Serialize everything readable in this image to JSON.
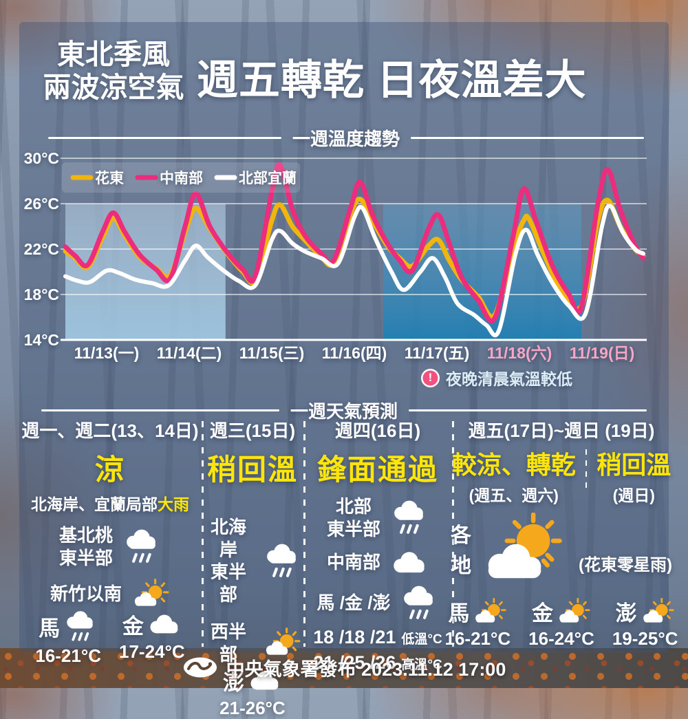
{
  "header": {
    "tagline_line1": "東北季風",
    "tagline_line2": "兩波涼空氣",
    "title": "週五轉乾 日夜溫差大"
  },
  "chart_section": {
    "heading": "一週溫度趨勢",
    "note_icon": "exclamation",
    "note": "夜晚清晨氣溫較低"
  },
  "chart_data": {
    "type": "line",
    "title": "一週溫度趨勢",
    "ylabel": "°C",
    "ylim": [
      14,
      30
    ],
    "yticks": [
      30,
      26,
      22,
      18,
      14
    ],
    "ytick_labels": [
      "30°C",
      "26°C",
      "22°C",
      "18°C",
      "14°C"
    ],
    "grid": true,
    "legend_position": "top-left",
    "x_days": [
      {
        "label": "11/13(一)",
        "weekend": false
      },
      {
        "label": "11/14(二)",
        "weekend": false
      },
      {
        "label": "11/15(三)",
        "weekend": false
      },
      {
        "label": "11/16(四)",
        "weekend": false
      },
      {
        "label": "11/17(五)",
        "weekend": false
      },
      {
        "label": "11/18(六)",
        "weekend": true
      },
      {
        "label": "11/19(日)",
        "weekend": true
      }
    ],
    "weekend_label_color": "#f7a6c6",
    "shaded_regions": [
      {
        "id": "cool-air-wave-1",
        "from_day": 0,
        "to_day": 1.94,
        "top_temp": 26,
        "tone": "light"
      },
      {
        "id": "cool-air-wave-2",
        "from_day": 3.85,
        "to_day": 6.25,
        "top_temp": 26,
        "tone": "dark"
      }
    ],
    "series": [
      {
        "id": "hualien-taitung",
        "name": "花東",
        "color": "#f2b50c",
        "width": 7,
        "points": [
          [
            0,
            21.8
          ],
          [
            0.12,
            21.2
          ],
          [
            0.27,
            20.4
          ],
          [
            0.45,
            23.0
          ],
          [
            0.58,
            24.7
          ],
          [
            0.72,
            23.2
          ],
          [
            0.9,
            21.3
          ],
          [
            1.1,
            20.3
          ],
          [
            1.27,
            19.7
          ],
          [
            1.45,
            23.5
          ],
          [
            1.58,
            25.6
          ],
          [
            1.75,
            23.8
          ],
          [
            1.95,
            21.7
          ],
          [
            2.15,
            20.0
          ],
          [
            2.3,
            19.3
          ],
          [
            2.5,
            24.5
          ],
          [
            2.6,
            25.9
          ],
          [
            2.75,
            24.0
          ],
          [
            2.9,
            22.8
          ],
          [
            3.1,
            21.3
          ],
          [
            3.25,
            20.8
          ],
          [
            3.45,
            25.0
          ],
          [
            3.57,
            26.4
          ],
          [
            3.72,
            24.5
          ],
          [
            3.9,
            22.3
          ],
          [
            4.05,
            21.2
          ],
          [
            4.2,
            20.5
          ],
          [
            4.4,
            22.3
          ],
          [
            4.52,
            22.8
          ],
          [
            4.65,
            21.0
          ],
          [
            4.8,
            19.3
          ],
          [
            5.0,
            17.8
          ],
          [
            5.2,
            16.2
          ],
          [
            5.42,
            22.0
          ],
          [
            5.55,
            24.5
          ],
          [
            5.62,
            24.6
          ],
          [
            5.8,
            21.5
          ],
          [
            6.0,
            18.5
          ],
          [
            6.25,
            17.0
          ],
          [
            6.45,
            24.5
          ],
          [
            6.57,
            26.3
          ],
          [
            6.72,
            24.0
          ],
          [
            6.9,
            22.0
          ],
          [
            7.0,
            21.4
          ]
        ]
      },
      {
        "id": "central-southern",
        "name": "中南部",
        "color": "#ec2c7c",
        "width": 7,
        "points": [
          [
            0,
            22.2
          ],
          [
            0.12,
            21.4
          ],
          [
            0.27,
            20.6
          ],
          [
            0.45,
            23.5
          ],
          [
            0.58,
            25.2
          ],
          [
            0.72,
            23.5
          ],
          [
            0.9,
            21.5
          ],
          [
            1.1,
            20.2
          ],
          [
            1.27,
            19.4
          ],
          [
            1.45,
            24.0
          ],
          [
            1.58,
            26.9
          ],
          [
            1.75,
            24.0
          ],
          [
            1.95,
            21.8
          ],
          [
            2.15,
            20.2
          ],
          [
            2.3,
            19.6
          ],
          [
            2.5,
            27.0
          ],
          [
            2.6,
            29.4
          ],
          [
            2.75,
            25.5
          ],
          [
            2.9,
            23.2
          ],
          [
            3.1,
            21.6
          ],
          [
            3.25,
            21.0
          ],
          [
            3.45,
            25.5
          ],
          [
            3.57,
            27.9
          ],
          [
            3.72,
            25.0
          ],
          [
            3.9,
            22.5
          ],
          [
            4.05,
            21.0
          ],
          [
            4.2,
            20.1
          ],
          [
            4.4,
            23.8
          ],
          [
            4.52,
            25.0
          ],
          [
            4.65,
            22.5
          ],
          [
            4.8,
            19.5
          ],
          [
            5.0,
            17.5
          ],
          [
            5.2,
            15.9
          ],
          [
            5.42,
            23.0
          ],
          [
            5.55,
            27.3
          ],
          [
            5.7,
            24.5
          ],
          [
            5.9,
            20.5
          ],
          [
            6.1,
            18.0
          ],
          [
            6.25,
            16.9
          ],
          [
            6.45,
            26.0
          ],
          [
            6.57,
            29.0
          ],
          [
            6.72,
            25.5
          ],
          [
            6.9,
            22.3
          ],
          [
            7.0,
            21.2
          ]
        ]
      },
      {
        "id": "northern-yilan",
        "name": "北部宜蘭",
        "color": "#ffffff",
        "width": 6,
        "points": [
          [
            0,
            19.6
          ],
          [
            0.15,
            19.2
          ],
          [
            0.3,
            19.1
          ],
          [
            0.5,
            20.1
          ],
          [
            0.65,
            19.9
          ],
          [
            0.85,
            19.3
          ],
          [
            1.05,
            19.0
          ],
          [
            1.25,
            18.8
          ],
          [
            1.45,
            21.0
          ],
          [
            1.58,
            22.3
          ],
          [
            1.72,
            21.3
          ],
          [
            1.9,
            20.2
          ],
          [
            2.1,
            19.2
          ],
          [
            2.3,
            18.8
          ],
          [
            2.5,
            22.8
          ],
          [
            2.6,
            23.6
          ],
          [
            2.75,
            22.5
          ],
          [
            2.9,
            21.8
          ],
          [
            3.1,
            21.2
          ],
          [
            3.3,
            20.7
          ],
          [
            3.5,
            24.8
          ],
          [
            3.6,
            25.6
          ],
          [
            3.75,
            23.0
          ],
          [
            3.95,
            20.0
          ],
          [
            4.1,
            18.4
          ],
          [
            4.3,
            20.0
          ],
          [
            4.45,
            21.2
          ],
          [
            4.6,
            19.5
          ],
          [
            4.75,
            17.2
          ],
          [
            4.95,
            16.2
          ],
          [
            5.1,
            15.3
          ],
          [
            5.25,
            14.8
          ],
          [
            5.45,
            21.5
          ],
          [
            5.58,
            23.7
          ],
          [
            5.72,
            21.5
          ],
          [
            5.9,
            19.0
          ],
          [
            6.1,
            17.0
          ],
          [
            6.3,
            16.3
          ],
          [
            6.5,
            24.0
          ],
          [
            6.6,
            25.8
          ],
          [
            6.75,
            23.5
          ],
          [
            6.9,
            22.0
          ],
          [
            7.0,
            21.6
          ]
        ]
      }
    ],
    "legend": [
      {
        "id": "hualien-taitung",
        "label": "花東",
        "color": "#f2b50c"
      },
      {
        "id": "central-southern",
        "label": "中南部",
        "color": "#ec2c7c"
      },
      {
        "id": "northern-yilan",
        "label": "北部宜蘭",
        "color": "#ffffff"
      }
    ]
  },
  "forecast": {
    "heading": "一週天氣預測",
    "columns": [
      {
        "header": "週一、週二(13、14日)",
        "condition": "涼",
        "subtitle_white": "北海岸、宜蘭局部",
        "subtitle_yellow": "大雨",
        "rows": [
          {
            "label": "基北桃\n東半部",
            "icon": "rain"
          },
          {
            "label": "新竹以南",
            "icon": "partly-sunny"
          }
        ],
        "islands": [
          {
            "name": "馬",
            "icon": "rain",
            "temp": "16-21°C"
          },
          {
            "name": "金",
            "icon": "cloud",
            "temp": "17-24°C"
          }
        ]
      },
      {
        "header": "週三(15日)",
        "condition": "稍回溫",
        "rows": [
          {
            "label": "北海岸\n東半部",
            "icon": "rain"
          },
          {
            "label": "西半部",
            "icon": "partly-sunny"
          }
        ],
        "islands": [
          {
            "name": "澎",
            "icon": "cloud",
            "temp": "21-26°C"
          }
        ]
      },
      {
        "header": "週四(16日)",
        "condition": "鋒面通過",
        "rows": [
          {
            "label": "北部\n東半部",
            "icon": "rain"
          },
          {
            "label": "中南部",
            "icon": "cloud"
          },
          {
            "label": "馬 /金 /澎",
            "icon": "rain"
          }
        ],
        "temp_lines": [
          {
            "values": "18 /18 /21",
            "suffix": "低溫°C"
          },
          {
            "values": "21 /25 /26",
            "suffix": "高溫°C"
          }
        ]
      },
      {
        "header": "週五(17日)~週日 (19日)",
        "sub_conditions": [
          {
            "condition": "較涼、轉乾",
            "period": "(週五、週六)"
          },
          {
            "condition": "稍回溫",
            "period": "(週日)"
          }
        ],
        "area": {
          "label": "各地",
          "icon": "sun-cloud-big",
          "note": "(花東零星雨)"
        },
        "islands": [
          {
            "name": "馬",
            "icon": "partly-sunny",
            "temp": "16-21°C"
          },
          {
            "name": "金",
            "icon": "partly-sunny",
            "temp": "16-24°C"
          },
          {
            "name": "澎",
            "icon": "partly-sunny",
            "temp": "19-25°C"
          }
        ]
      }
    ]
  },
  "footer": {
    "text": "中央氣象署發布 2023.11.12 17:00"
  },
  "colors": {
    "accent_yellow": "#ffe608",
    "line_yellow": "#f2b50c",
    "line_pink": "#ec2c7c",
    "line_white": "#ffffff",
    "note_icon_pink": "#f0517e",
    "weekend_label": "#f7a6c6"
  }
}
